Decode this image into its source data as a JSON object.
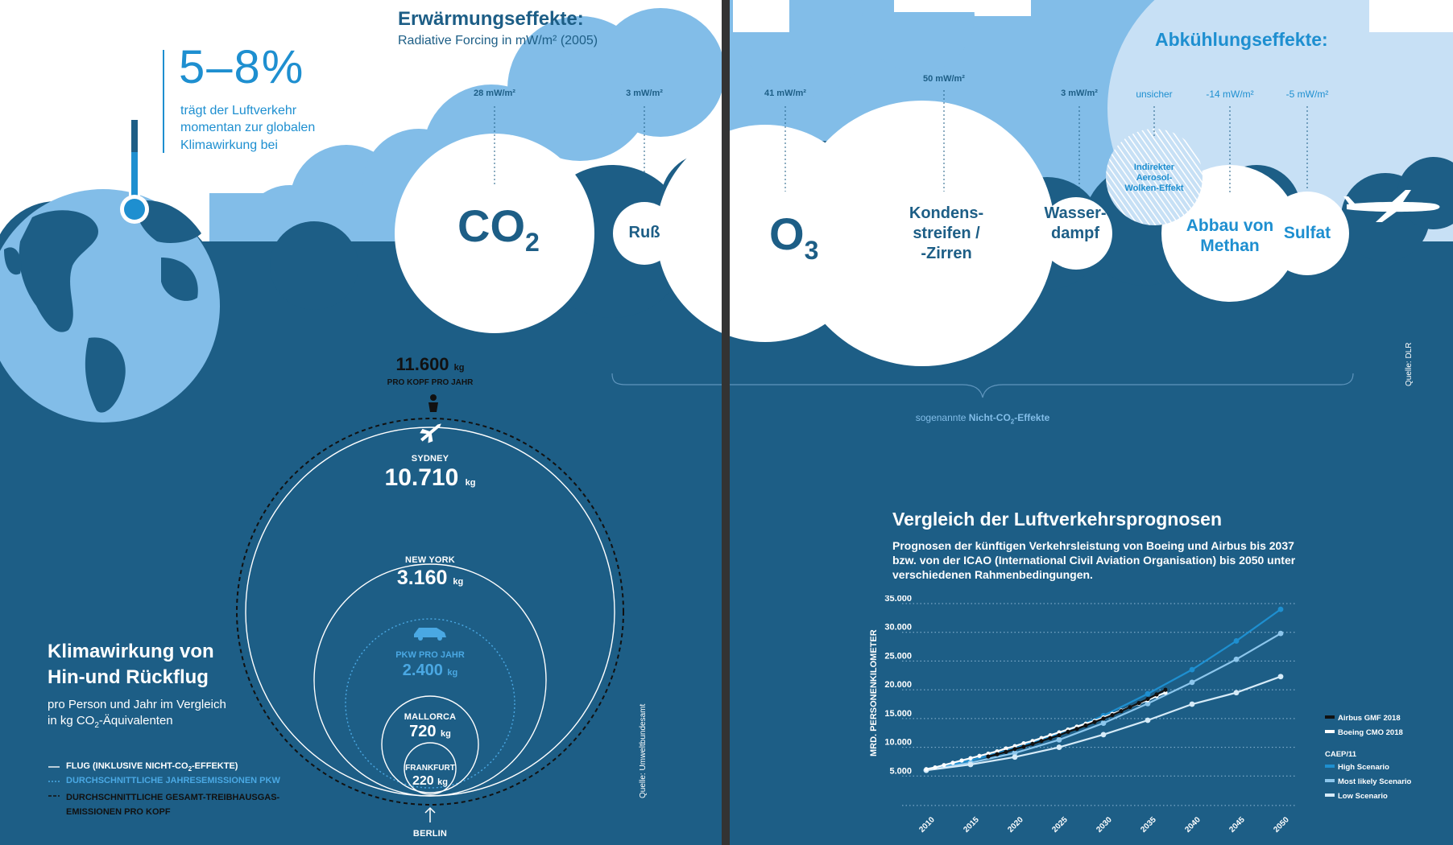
{
  "warming": {
    "title": "Erwärmungseffekte:",
    "subtitle": "Radiative Forcing in mW/m² (2005)"
  },
  "cooling": {
    "title": "Abkühlungseffekte:"
  },
  "share": {
    "value": "5–8%",
    "text_1": "trägt der Luftverkehr",
    "text_2": "momentan zur globalen",
    "text_3": "Klimawirkung bei"
  },
  "effects": [
    {
      "name_1": "CO",
      "name_sub": "2",
      "value": "28 mW/m²"
    },
    {
      "name_1": "Ruß",
      "value": "3 mW/m²"
    },
    {
      "name_1": "O",
      "name_sub": "3",
      "value": "41 mW/m²"
    },
    {
      "name_1": "Kondens-",
      "name_2": "streifen /",
      "name_3": "-Zirren",
      "value": "50 mW/m²"
    },
    {
      "name_1": "Wasser-",
      "name_2": "dampf",
      "value": "3 mW/m²"
    },
    {
      "name_1": "Indirekter",
      "name_2": "Aerosol-",
      "name_3": "Wolken-Effekt",
      "value": "unsicher"
    },
    {
      "name_1": "Abbau von",
      "name_2": "Methan",
      "value": "-14 mW/m²"
    },
    {
      "name_1": "Sulfat",
      "value": "-5 mW/m²"
    }
  ],
  "non_co2": {
    "prefix": "sogenannte ",
    "bold": "Nicht-CO",
    "sub": "2",
    "suffix": "-Effekte"
  },
  "source_dlr": "Quelle: DLR",
  "source_uba": "Quelle: Umweltbundesamt",
  "flight": {
    "title_1": "Klimawirkung von",
    "title_2": "Hin-und Rückflug",
    "sub_1": "pro Person und Jahr im Vergleich",
    "sub_2_a": "in kg CO",
    "sub_2_sub": "2",
    "sub_2_b": "-Äquivalenten",
    "unit": "kg",
    "per_capita": {
      "value": "11.600",
      "label": "PRO KOPF PRO JAHR"
    },
    "sydney": {
      "label": "SYDNEY",
      "value": "10.710"
    },
    "newyork": {
      "label": "NEW YORK",
      "value": "3.160"
    },
    "pkw": {
      "label": "PKW PRO JAHR",
      "value": "2.400"
    },
    "mallorca": {
      "label": "MALLORCA",
      "value": "720"
    },
    "frankfurt": {
      "label": "FRANKFURT",
      "value": "220"
    },
    "origin": "BERLIN",
    "legend": [
      {
        "text_a": "FLUG (INKLUSIVE NICHT-CO",
        "text_sub": "2",
        "text_b": "-EFFEKTE)"
      },
      {
        "text_a": "DURCHSCHNITTLICHE JAHRESEMISSIONEN PKW"
      },
      {
        "text_a": "DURCHSCHNITTLICHE GESAMT-TREIBHAUSGAS-",
        "text_b2": "EMISSIONEN PRO KOPF"
      }
    ]
  },
  "forecast": {
    "title": "Vergleich der Luftverkehrsprognosen",
    "desc_1": "Prognosen der künftigen Verkehrsleistung von Boeing und Airbus bis 2037",
    "desc_2": "bzw. von der ICAO (International Civil Aviation Organisation) bis 2050 unter",
    "desc_3": "verschiedenen Rahmenbedingungen.",
    "legend_group": "CAEP/11"
  },
  "chart_data": {
    "type": "line",
    "ylabel": "MRD. PERSONENKILOMETER",
    "xlabel": "",
    "ylim": [
      0,
      35000
    ],
    "xlim": [
      2010,
      2050
    ],
    "yticks": [
      "5.000",
      "10.000",
      "15.000",
      "20.000",
      "25.000",
      "30.000",
      "35.000"
    ],
    "xticks": [
      "2010",
      "2015",
      "2020",
      "2025",
      "2030",
      "2035",
      "2040",
      "2045",
      "2050"
    ],
    "grid": "horizontal dotted",
    "legend_position": "right",
    "series": [
      {
        "name": "Airbus GMF 2018",
        "color": "#111111",
        "x": [
          2017,
          2018,
          2019,
          2020,
          2021,
          2022,
          2023,
          2024,
          2025,
          2026,
          2027,
          2028,
          2029,
          2030,
          2031,
          2032,
          2033,
          2034,
          2035,
          2036,
          2037
        ],
        "y": [
          8400,
          8800,
          9200,
          9700,
          10100,
          10600,
          11100,
          11600,
          12100,
          12700,
          13200,
          13800,
          14400,
          15000,
          15600,
          16300,
          17000,
          17700,
          18400,
          19200,
          20000
        ]
      },
      {
        "name": "Boeing CMO 2018",
        "color": "#ffffff",
        "x": [
          2010,
          2011,
          2012,
          2013,
          2014,
          2015,
          2016,
          2017,
          2018,
          2019,
          2020,
          2021,
          2022,
          2023,
          2024,
          2025,
          2026,
          2027,
          2028,
          2029,
          2030,
          2031,
          2032,
          2033,
          2034,
          2035,
          2036,
          2037
        ],
        "y": [
          6200,
          6500,
          6900,
          7300,
          7700,
          8100,
          8500,
          8900,
          9300,
          9800,
          10200,
          10700,
          11100,
          11600,
          12100,
          12600,
          13100,
          13600,
          14100,
          14600,
          15200,
          15800,
          16400,
          17000,
          17600,
          18200,
          18900,
          19500
        ]
      },
      {
        "name": "High Scenario",
        "color": "#1e8fd0",
        "x": [
          2010,
          2015,
          2020,
          2025,
          2030,
          2035,
          2040,
          2045,
          2050
        ],
        "y": [
          6000,
          7700,
          9800,
          12300,
          15500,
          19300,
          23500,
          28500,
          34000
        ]
      },
      {
        "name": "Most likely Scenario",
        "color": "#8cc6ec",
        "x": [
          2010,
          2015,
          2020,
          2025,
          2030,
          2035,
          2040,
          2045,
          2050
        ],
        "y": [
          6000,
          7300,
          9000,
          11300,
          14200,
          17600,
          21300,
          25300,
          29800
        ]
      },
      {
        "name": "Low Scenario",
        "color": "#d6ebf8",
        "x": [
          2010,
          2015,
          2020,
          2025,
          2030,
          2035,
          2040,
          2045,
          2050
        ],
        "y": [
          6000,
          7000,
          8300,
          10000,
          12200,
          14700,
          17500,
          19500,
          22300
        ]
      }
    ]
  }
}
